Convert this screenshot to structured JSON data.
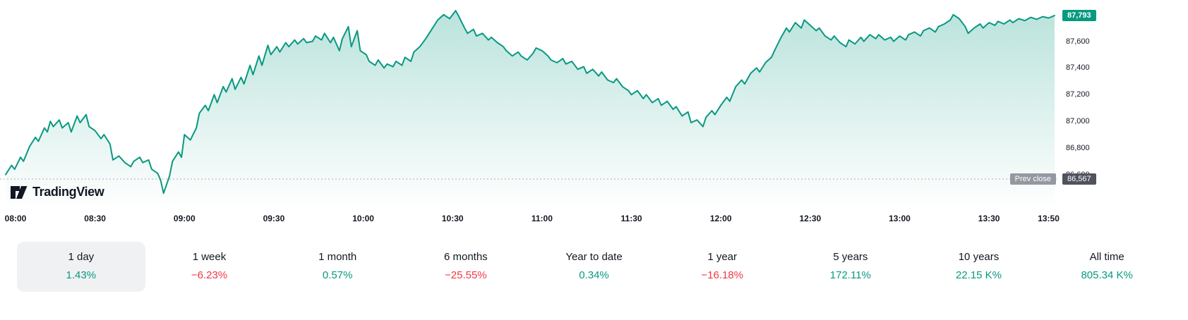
{
  "brand": {
    "name": "TradingView"
  },
  "colors": {
    "accent_up": "#089981",
    "negative_down": "#f23645",
    "prev_close_label_bg": "#9598a1",
    "prev_close_value_bg": "#50535e",
    "selected_range_bg": "#f0f1f3"
  },
  "chart_data": {
    "type": "area",
    "title": "",
    "xlabel": "",
    "ylabel": "",
    "grid": false,
    "legend": false,
    "line_color": "#089981",
    "fill_top": "rgba(8,153,129,0.28)",
    "fill_bottom": "rgba(8,153,129,0)",
    "y_range": [
      86350,
      87910
    ],
    "current_price": {
      "label": "87,793",
      "value": 87793
    },
    "prev_close": {
      "label": "Prev close",
      "display": "86,567",
      "value": 86567
    },
    "y_ticks": [
      {
        "label": "87,600",
        "value": 87600
      },
      {
        "label": "87,400",
        "value": 87400
      },
      {
        "label": "87,200",
        "value": 87200
      },
      {
        "label": "87,000",
        "value": 87000
      },
      {
        "label": "86,800",
        "value": 86800
      },
      {
        "label": "86,600",
        "value": 86600
      }
    ],
    "x_ticks": [
      {
        "label": "08:00",
        "minute": 0
      },
      {
        "label": "08:30",
        "minute": 30
      },
      {
        "label": "09:00",
        "minute": 60
      },
      {
        "label": "09:30",
        "minute": 90
      },
      {
        "label": "10:00",
        "minute": 120
      },
      {
        "label": "10:30",
        "minute": 150
      },
      {
        "label": "11:00",
        "minute": 180
      },
      {
        "label": "11:30",
        "minute": 210
      },
      {
        "label": "12:00",
        "minute": 240
      },
      {
        "label": "12:30",
        "minute": 270
      },
      {
        "label": "13:00",
        "minute": 300
      },
      {
        "label": "13:30",
        "minute": 330
      },
      {
        "label": "13:50",
        "minute": 350
      }
    ],
    "points": [
      [
        0,
        86600
      ],
      [
        2,
        86670
      ],
      [
        3,
        86640
      ],
      [
        5,
        86730
      ],
      [
        6,
        86700
      ],
      [
        8,
        86810
      ],
      [
        10,
        86880
      ],
      [
        11,
        86850
      ],
      [
        13,
        86950
      ],
      [
        14,
        86920
      ],
      [
        15,
        87000
      ],
      [
        16,
        86960
      ],
      [
        18,
        87010
      ],
      [
        19,
        86950
      ],
      [
        21,
        86990
      ],
      [
        22,
        86920
      ],
      [
        24,
        87040
      ],
      [
        25,
        86990
      ],
      [
        27,
        87050
      ],
      [
        28,
        86960
      ],
      [
        30,
        86930
      ],
      [
        32,
        86870
      ],
      [
        33,
        86900
      ],
      [
        35,
        86830
      ],
      [
        36,
        86710
      ],
      [
        38,
        86740
      ],
      [
        40,
        86690
      ],
      [
        42,
        86660
      ],
      [
        43,
        86700
      ],
      [
        45,
        86730
      ],
      [
        46,
        86690
      ],
      [
        48,
        86710
      ],
      [
        49,
        86640
      ],
      [
        51,
        86610
      ],
      [
        52,
        86560
      ],
      [
        53,
        86460
      ],
      [
        55,
        86590
      ],
      [
        56,
        86700
      ],
      [
        58,
        86770
      ],
      [
        59,
        86730
      ],
      [
        60,
        86900
      ],
      [
        62,
        86860
      ],
      [
        64,
        86950
      ],
      [
        65,
        87060
      ],
      [
        67,
        87120
      ],
      [
        68,
        87080
      ],
      [
        70,
        87200
      ],
      [
        71,
        87140
      ],
      [
        73,
        87260
      ],
      [
        74,
        87220
      ],
      [
        76,
        87320
      ],
      [
        77,
        87240
      ],
      [
        79,
        87330
      ],
      [
        80,
        87280
      ],
      [
        82,
        87420
      ],
      [
        83,
        87350
      ],
      [
        85,
        87490
      ],
      [
        86,
        87420
      ],
      [
        88,
        87570
      ],
      [
        89,
        87500
      ],
      [
        91,
        87560
      ],
      [
        92,
        87520
      ],
      [
        94,
        87590
      ],
      [
        95,
        87560
      ],
      [
        97,
        87610
      ],
      [
        98,
        87580
      ],
      [
        100,
        87620
      ],
      [
        101,
        87590
      ],
      [
        103,
        87600
      ],
      [
        104,
        87640
      ],
      [
        106,
        87610
      ],
      [
        107,
        87660
      ],
      [
        109,
        87590
      ],
      [
        110,
        87630
      ],
      [
        112,
        87530
      ],
      [
        113,
        87620
      ],
      [
        115,
        87710
      ],
      [
        116,
        87560
      ],
      [
        118,
        87680
      ],
      [
        119,
        87530
      ],
      [
        121,
        87500
      ],
      [
        122,
        87450
      ],
      [
        124,
        87420
      ],
      [
        125,
        87460
      ],
      [
        127,
        87400
      ],
      [
        128,
        87430
      ],
      [
        130,
        87410
      ],
      [
        131,
        87450
      ],
      [
        133,
        87420
      ],
      [
        134,
        87480
      ],
      [
        136,
        87450
      ],
      [
        137,
        87520
      ],
      [
        139,
        87560
      ],
      [
        141,
        87620
      ],
      [
        143,
        87690
      ],
      [
        145,
        87760
      ],
      [
        147,
        87800
      ],
      [
        149,
        87770
      ],
      [
        151,
        87830
      ],
      [
        152,
        87790
      ],
      [
        154,
        87700
      ],
      [
        155,
        87660
      ],
      [
        157,
        87690
      ],
      [
        158,
        87640
      ],
      [
        160,
        87660
      ],
      [
        162,
        87610
      ],
      [
        163,
        87630
      ],
      [
        165,
        87590
      ],
      [
        167,
        87560
      ],
      [
        168,
        87530
      ],
      [
        170,
        87490
      ],
      [
        172,
        87520
      ],
      [
        173,
        87490
      ],
      [
        175,
        87460
      ],
      [
        177,
        87510
      ],
      [
        178,
        87550
      ],
      [
        180,
        87530
      ],
      [
        182,
        87490
      ],
      [
        183,
        87460
      ],
      [
        185,
        87440
      ],
      [
        187,
        87470
      ],
      [
        188,
        87430
      ],
      [
        190,
        87450
      ],
      [
        192,
        87390
      ],
      [
        194,
        87410
      ],
      [
        195,
        87360
      ],
      [
        197,
        87390
      ],
      [
        199,
        87340
      ],
      [
        200,
        87370
      ],
      [
        202,
        87310
      ],
      [
        204,
        87290
      ],
      [
        205,
        87320
      ],
      [
        207,
        87260
      ],
      [
        209,
        87230
      ],
      [
        210,
        87200
      ],
      [
        212,
        87230
      ],
      [
        214,
        87170
      ],
      [
        215,
        87200
      ],
      [
        217,
        87140
      ],
      [
        219,
        87170
      ],
      [
        220,
        87120
      ],
      [
        222,
        87150
      ],
      [
        224,
        87090
      ],
      [
        225,
        87110
      ],
      [
        227,
        87040
      ],
      [
        229,
        87070
      ],
      [
        230,
        86990
      ],
      [
        232,
        87010
      ],
      [
        234,
        86960
      ],
      [
        235,
        87030
      ],
      [
        237,
        87080
      ],
      [
        238,
        87050
      ],
      [
        240,
        87120
      ],
      [
        242,
        87180
      ],
      [
        243,
        87150
      ],
      [
        245,
        87260
      ],
      [
        247,
        87310
      ],
      [
        248,
        87280
      ],
      [
        250,
        87360
      ],
      [
        252,
        87400
      ],
      [
        253,
        87370
      ],
      [
        255,
        87440
      ],
      [
        257,
        87480
      ],
      [
        258,
        87530
      ],
      [
        260,
        87620
      ],
      [
        262,
        87700
      ],
      [
        263,
        87670
      ],
      [
        265,
        87740
      ],
      [
        267,
        87700
      ],
      [
        268,
        87760
      ],
      [
        270,
        87720
      ],
      [
        272,
        87680
      ],
      [
        273,
        87700
      ],
      [
        275,
        87640
      ],
      [
        277,
        87610
      ],
      [
        278,
        87640
      ],
      [
        280,
        87590
      ],
      [
        282,
        87560
      ],
      [
        283,
        87610
      ],
      [
        285,
        87580
      ],
      [
        287,
        87630
      ],
      [
        288,
        87600
      ],
      [
        290,
        87650
      ],
      [
        292,
        87620
      ],
      [
        293,
        87650
      ],
      [
        295,
        87610
      ],
      [
        297,
        87630
      ],
      [
        298,
        87600
      ],
      [
        300,
        87640
      ],
      [
        302,
        87610
      ],
      [
        303,
        87650
      ],
      [
        305,
        87670
      ],
      [
        307,
        87640
      ],
      [
        308,
        87680
      ],
      [
        310,
        87700
      ],
      [
        312,
        87670
      ],
      [
        313,
        87710
      ],
      [
        315,
        87730
      ],
      [
        317,
        87760
      ],
      [
        318,
        87800
      ],
      [
        320,
        87770
      ],
      [
        322,
        87710
      ],
      [
        323,
        87660
      ],
      [
        325,
        87700
      ],
      [
        327,
        87730
      ],
      [
        328,
        87700
      ],
      [
        330,
        87740
      ],
      [
        332,
        87720
      ],
      [
        333,
        87750
      ],
      [
        335,
        87730
      ],
      [
        337,
        87760
      ],
      [
        338,
        87740
      ],
      [
        340,
        87770
      ],
      [
        342,
        87755
      ],
      [
        344,
        87780
      ],
      [
        346,
        87765
      ],
      [
        348,
        87785
      ],
      [
        350,
        87775
      ],
      [
        352,
        87793
      ]
    ]
  },
  "ranges": [
    {
      "label": "1 day",
      "change": "1.43%",
      "direction": "up",
      "selected": true
    },
    {
      "label": "1 week",
      "change": "−6.23%",
      "direction": "down",
      "selected": false
    },
    {
      "label": "1 month",
      "change": "0.57%",
      "direction": "up",
      "selected": false
    },
    {
      "label": "6 months",
      "change": "−25.55%",
      "direction": "down",
      "selected": false
    },
    {
      "label": "Year to date",
      "change": "0.34%",
      "direction": "up",
      "selected": false
    },
    {
      "label": "1 year",
      "change": "−16.18%",
      "direction": "down",
      "selected": false
    },
    {
      "label": "5 years",
      "change": "172.11%",
      "direction": "up",
      "selected": false
    },
    {
      "label": "10 years",
      "change": "22.15 K%",
      "direction": "up",
      "selected": false
    },
    {
      "label": "All time",
      "change": "805.34 K%",
      "direction": "up",
      "selected": false
    }
  ]
}
